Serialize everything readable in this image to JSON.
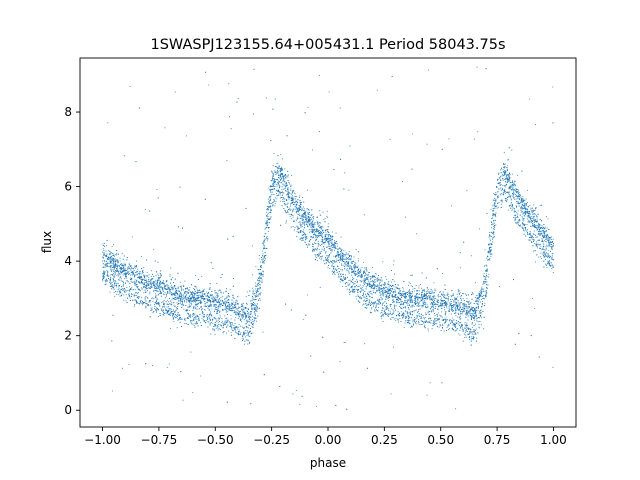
{
  "chart_data": {
    "type": "scatter",
    "title": "1SWASPJ123155.64+005431.1 Period 58043.75s",
    "xlabel": "phase",
    "ylabel": "flux",
    "xlim": [
      -1.1,
      1.1
    ],
    "ylim": [
      -0.45,
      9.45
    ],
    "xticks": [
      -1.0,
      -0.75,
      -0.5,
      -0.25,
      0.0,
      0.25,
      0.5,
      0.75,
      1.0
    ],
    "xtick_labels": [
      "−1.00",
      "−0.75",
      "−0.50",
      "−0.25",
      "0.00",
      "0.25",
      "0.50",
      "0.75",
      "1.00"
    ],
    "yticks": [
      0,
      2,
      4,
      6,
      8
    ],
    "ytick_labels": [
      "0",
      "2",
      "4",
      "6",
      "8"
    ],
    "grid": false,
    "legend": "none",
    "marker_color": "#1f77b4",
    "series": [
      {
        "x": [
          -1.0,
          -0.95,
          -0.9,
          -0.85,
          -0.8,
          -0.75,
          -0.7,
          -0.65,
          -0.6,
          -0.55,
          -0.5,
          -0.45,
          -0.4,
          -0.35,
          -0.3,
          -0.27,
          -0.25,
          -0.22,
          -0.2,
          -0.15,
          -0.1,
          -0.05,
          0.0,
          0.05,
          0.1,
          0.15,
          0.2,
          0.25,
          0.3,
          0.35,
          0.4,
          0.45,
          0.5,
          0.55,
          0.6,
          0.65,
          0.7,
          0.73,
          0.75,
          0.78,
          0.8,
          0.85,
          0.9,
          0.95,
          1.0
        ],
        "y": [
          4.2,
          3.9,
          3.7,
          3.6,
          3.45,
          3.35,
          3.2,
          3.05,
          3.0,
          3.0,
          2.9,
          2.85,
          2.7,
          2.5,
          3.6,
          5.2,
          6.0,
          6.4,
          6.2,
          5.6,
          5.2,
          4.8,
          4.6,
          4.2,
          3.9,
          3.6,
          3.4,
          3.2,
          3.15,
          3.0,
          3.0,
          3.0,
          2.9,
          2.85,
          2.8,
          2.6,
          3.6,
          5.2,
          6.0,
          6.4,
          6.2,
          5.6,
          5.2,
          4.8,
          4.4
        ]
      }
    ]
  }
}
